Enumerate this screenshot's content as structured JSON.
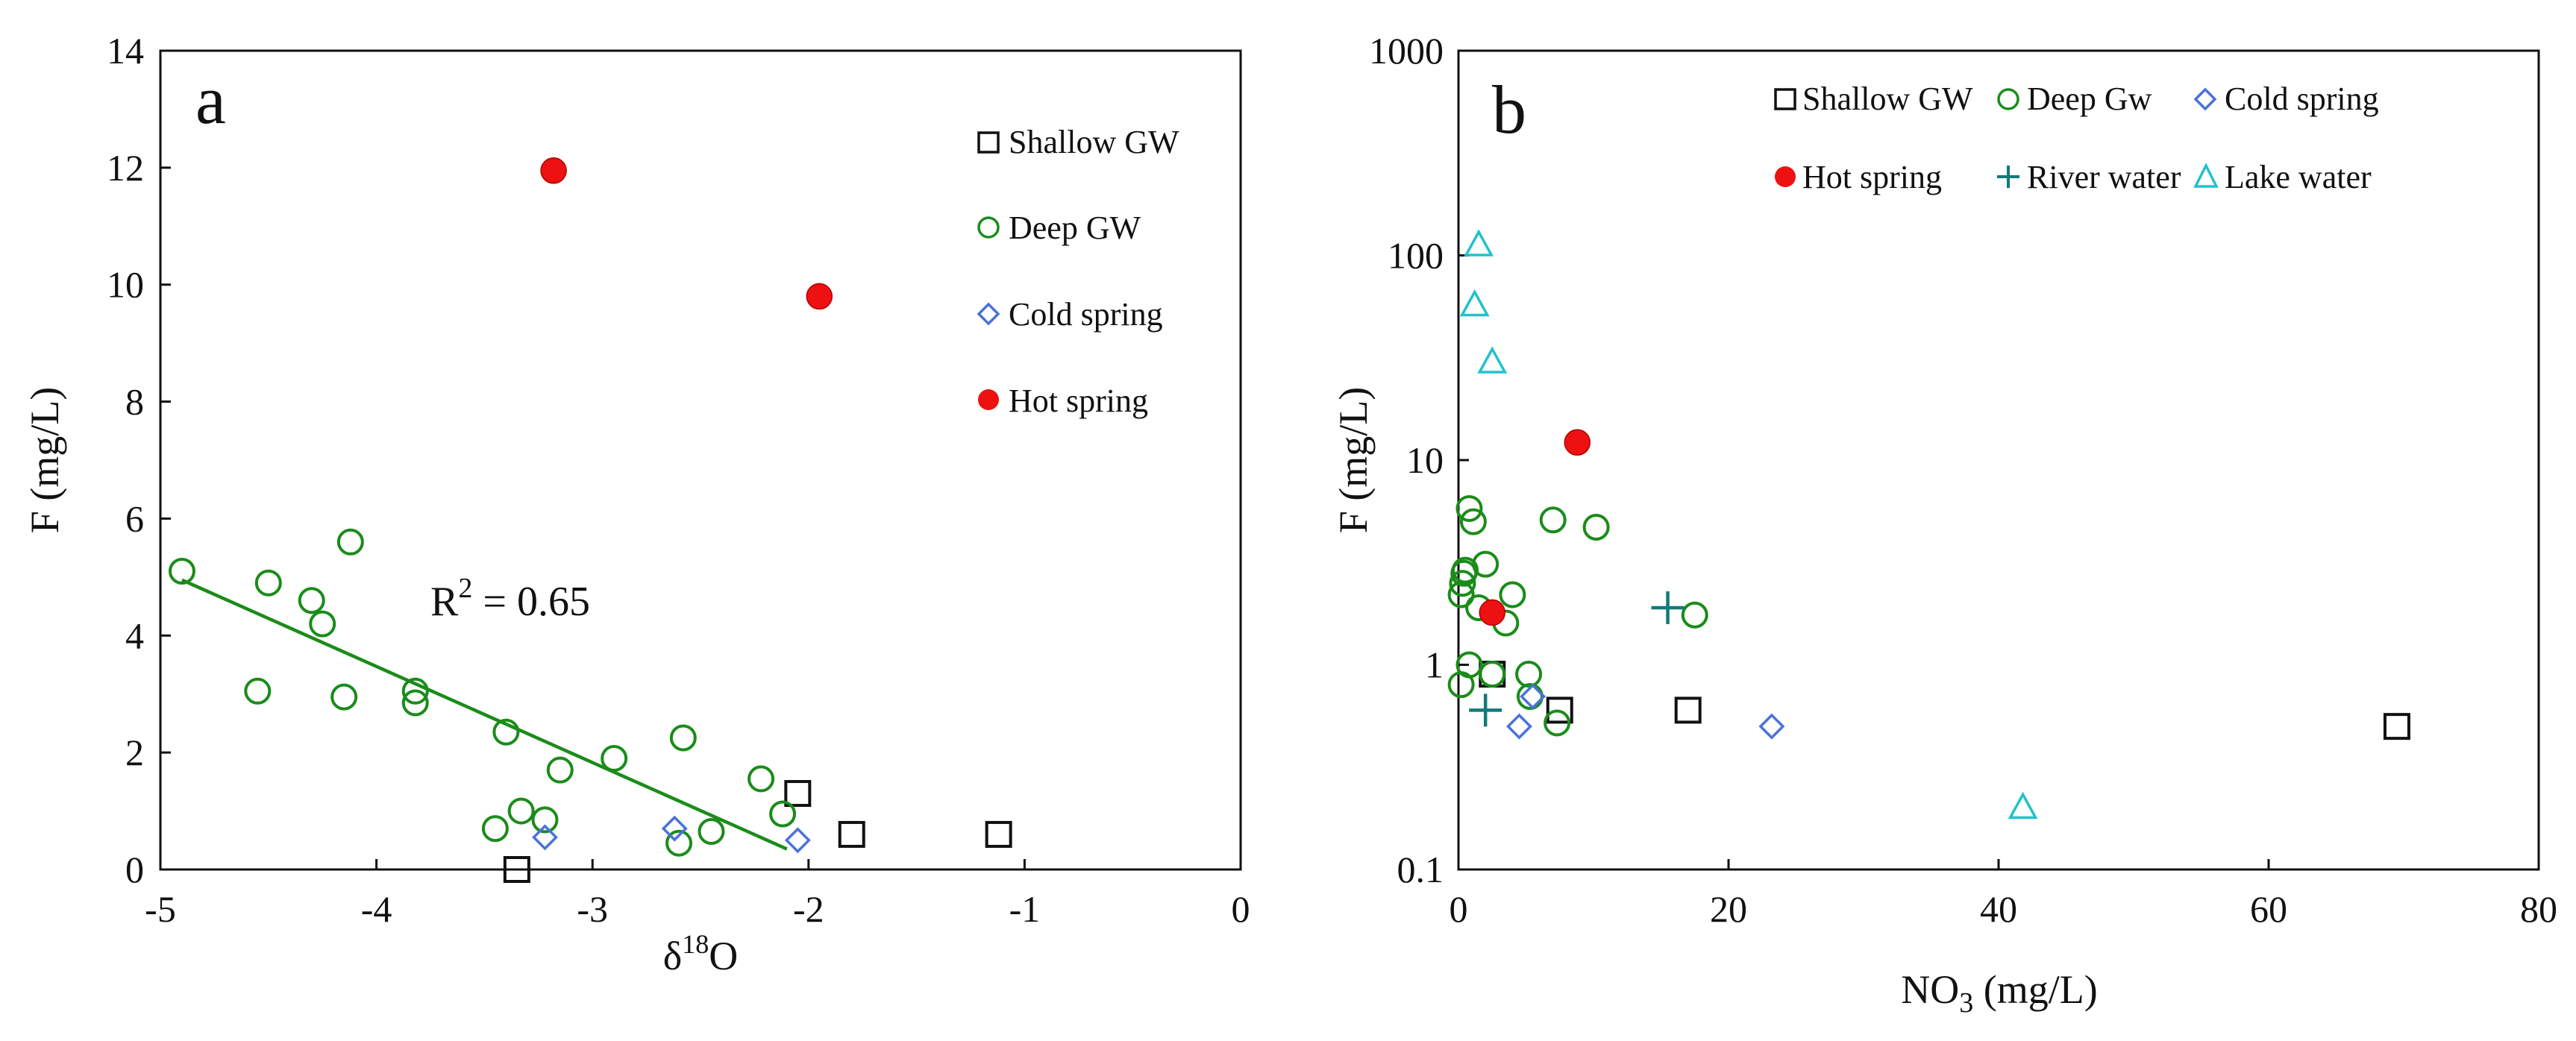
{
  "chart_data": [
    {
      "panel": "a",
      "type": "scatter",
      "xlabel": "δ18O",
      "xlabel_base": "δ",
      "xlabel_sup": "18",
      "xlabel_tail": "O",
      "ylabel": "F (mg/L)",
      "xlim": [
        -5,
        0
      ],
      "ylim": [
        0,
        14
      ],
      "xticks": [
        -5,
        -4,
        -3,
        -2,
        -1,
        0
      ],
      "yticks": [
        0,
        2,
        4,
        6,
        8,
        10,
        12,
        14
      ],
      "grid": false,
      "legend_position": "top-right",
      "annotation": {
        "text_base": "R",
        "text_sup": "2",
        "text_tail": " = 0.65",
        "x": -3.75,
        "y": 4.35
      },
      "regression": {
        "series": "Deep GW",
        "r2": 0.65,
        "x": [
          -4.9,
          -2.1
        ],
        "y": [
          4.95,
          0.35
        ]
      },
      "series": [
        {
          "name": "Shallow GW",
          "marker": "square",
          "color": "#111111",
          "points": [
            [
              -3.35,
              0.0
            ],
            [
              -2.05,
              1.3
            ],
            [
              -1.8,
              0.6
            ],
            [
              -1.12,
              0.6
            ]
          ]
        },
        {
          "name": "Deep GW",
          "marker": "circle",
          "color": "#1a8c1a",
          "points": [
            [
              -4.9,
              5.1
            ],
            [
              -4.5,
              4.9
            ],
            [
              -4.3,
              4.6
            ],
            [
              -4.25,
              4.2
            ],
            [
              -4.12,
              5.6
            ],
            [
              -4.55,
              3.05
            ],
            [
              -4.15,
              2.95
            ],
            [
              -3.82,
              3.05
            ],
            [
              -3.82,
              2.85
            ],
            [
              -3.4,
              2.35
            ],
            [
              -3.15,
              1.7
            ],
            [
              -2.9,
              1.9
            ],
            [
              -2.58,
              2.25
            ],
            [
              -2.22,
              1.55
            ],
            [
              -2.12,
              0.95
            ],
            [
              -3.45,
              0.7
            ],
            [
              -3.33,
              1.0
            ],
            [
              -3.22,
              0.85
            ],
            [
              -2.6,
              0.45
            ],
            [
              -2.45,
              0.65
            ]
          ]
        },
        {
          "name": "Cold spring",
          "marker": "diamond",
          "color": "#4a72d9",
          "points": [
            [
              -3.22,
              0.55
            ],
            [
              -2.62,
              0.7
            ],
            [
              -2.05,
              0.5
            ]
          ]
        },
        {
          "name": "Hot spring",
          "marker": "filled-circle",
          "color": "#ee1111",
          "points": [
            [
              -3.18,
              11.95
            ],
            [
              -1.95,
              9.8
            ]
          ]
        }
      ]
    },
    {
      "panel": "b",
      "type": "scatter",
      "xlabel": "NO3 (mg/L)",
      "xlabel_base": "NO",
      "xlabel_sub": "3",
      "xlabel_tail": " (mg/L)",
      "ylabel": "F (mg/L)",
      "xlim": [
        0,
        80
      ],
      "ylim": [
        0.1,
        1000
      ],
      "yscale": "log",
      "xticks": [
        0,
        20,
        40,
        60,
        80
      ],
      "yticks": [
        0.1,
        1,
        10,
        100,
        1000
      ],
      "ytick_labels": [
        "0.1",
        "1",
        "10",
        "100",
        "1000"
      ],
      "grid": false,
      "legend_position": "top",
      "series": [
        {
          "name": "Shallow GW",
          "marker": "square",
          "color": "#111111",
          "points": [
            [
              2.5,
              0.9
            ],
            [
              7.5,
              0.6
            ],
            [
              17,
              0.6
            ],
            [
              69.5,
              0.5
            ]
          ]
        },
        {
          "name": "Deep Gw",
          "marker": "circle",
          "color": "#1a8c1a",
          "points": [
            [
              0.2,
              2.2
            ],
            [
              0.3,
              2.5
            ],
            [
              0.4,
              2.8
            ],
            [
              0.5,
              2.9
            ],
            [
              0.8,
              5.8
            ],
            [
              1.1,
              5.0
            ],
            [
              1.5,
              1.9
            ],
            [
              2.0,
              3.1
            ],
            [
              3.5,
              1.6
            ],
            [
              4.0,
              2.2
            ],
            [
              7.0,
              5.1
            ],
            [
              10.2,
              4.7
            ],
            [
              17.5,
              1.75
            ],
            [
              0.2,
              0.8
            ],
            [
              0.8,
              1.0
            ],
            [
              2.5,
              0.9
            ],
            [
              5.2,
              0.9
            ],
            [
              5.3,
              0.7
            ],
            [
              7.3,
              0.52
            ]
          ]
        },
        {
          "name": "Cold spring",
          "marker": "diamond",
          "color": "#4a72d9",
          "points": [
            [
              4.5,
              0.5
            ],
            [
              5.5,
              0.7
            ],
            [
              23.2,
              0.5
            ]
          ]
        },
        {
          "name": "Hot spring",
          "marker": "filled-circle",
          "color": "#ee1111",
          "points": [
            [
              2.5,
              1.8
            ],
            [
              8.8,
              12.2
            ]
          ]
        },
        {
          "name": "River water",
          "marker": "plus",
          "color": "#117a7a",
          "points": [
            [
              2.0,
              0.6
            ],
            [
              15.5,
              1.9
            ]
          ]
        },
        {
          "name": "Lake water",
          "marker": "triangle",
          "color": "#21c2cc",
          "points": [
            [
              1.5,
              112
            ],
            [
              1.2,
              57
            ],
            [
              2.5,
              30
            ],
            [
              41.8,
              0.2
            ]
          ]
        }
      ]
    }
  ]
}
